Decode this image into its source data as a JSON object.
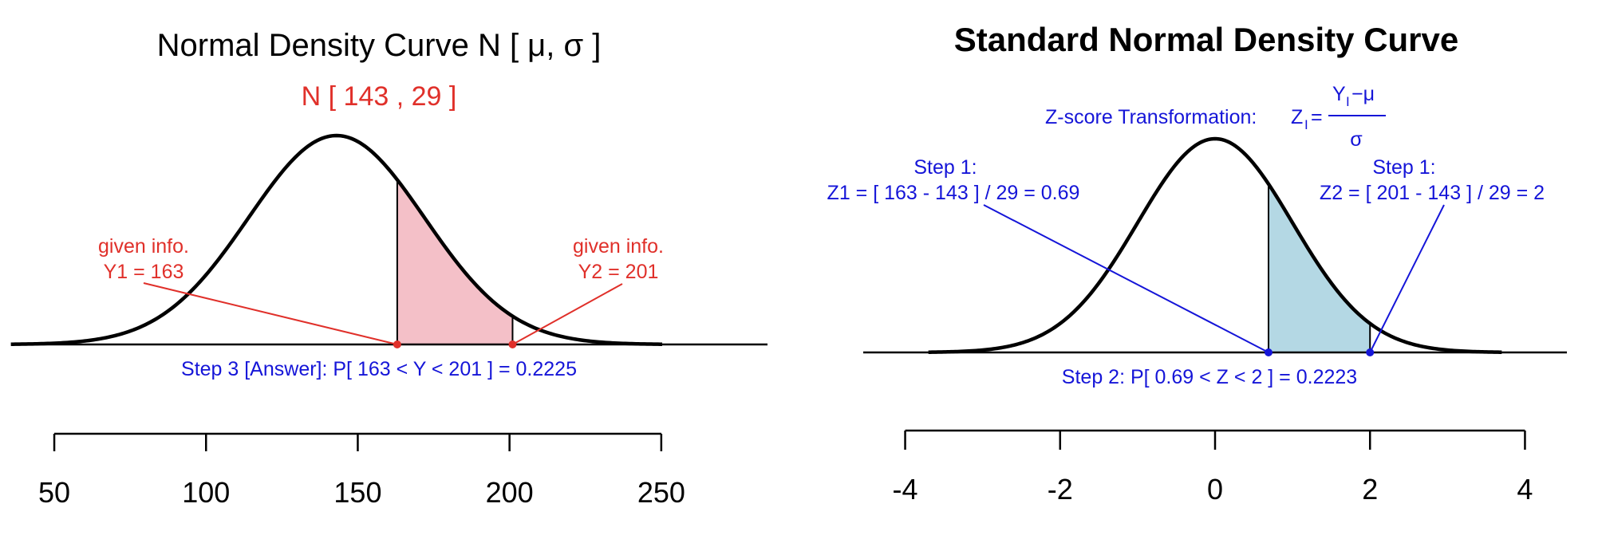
{
  "chart_data": [
    {
      "type": "area",
      "title": "Normal Density Curve N [ μ, σ ]",
      "subtitle": "N [ 143 , 29 ]",
      "distribution": {
        "mean": 143,
        "sd": 29
      },
      "shaded_interval": [
        163,
        201
      ],
      "shade_color": "#f4c0c8",
      "annotation_color": "#e0302a",
      "answer_color": "#1515d8",
      "xlim": [
        40,
        285
      ],
      "xticks": [
        50,
        100,
        150,
        200,
        250
      ],
      "xtick_labels": [
        "50",
        "100",
        "150",
        "200",
        "250"
      ],
      "annotations": {
        "given1_line1": "given info.",
        "given1_line2": "Y1 = 163",
        "given2_line1": "given info.",
        "given2_line2": "Y2 = 201",
        "answer": "Step 3 [Answer]:   P[ 163 < Y < 201 ] =  0.2225"
      }
    },
    {
      "type": "area",
      "title": "Standard Normal Density Curve",
      "distribution": {
        "mean": 0,
        "sd": 1
      },
      "shaded_interval": [
        0.69,
        2
      ],
      "shade_color": "#b4d8e4",
      "annotation_color": "#1515d8",
      "xlim": [
        -4.5,
        4.5
      ],
      "xticks": [
        -4,
        -2,
        0,
        2,
        4
      ],
      "xtick_labels": [
        "-4",
        "-2",
        "0",
        "2",
        "4"
      ],
      "annotations": {
        "zscore_label": "Z-score Transformation:",
        "z_lhs": "Z",
        "z_sub": "I",
        "z_eq": "=",
        "num_y": "Y",
        "num_sub": "I",
        "num_rest": "−μ",
        "den": "σ",
        "step1_left_line1": "Step 1:",
        "step1_left_line2": "Z1 = [ 163 - 143 ] / 29 = 0.69",
        "step1_right_line1": "Step 1:",
        "step1_right_line2": "Z2 = [ 201 - 143 ] / 29 = 2",
        "step2": "Step 2:   P[ 0.69 < Z < 2 ] =  0.2223"
      }
    }
  ]
}
